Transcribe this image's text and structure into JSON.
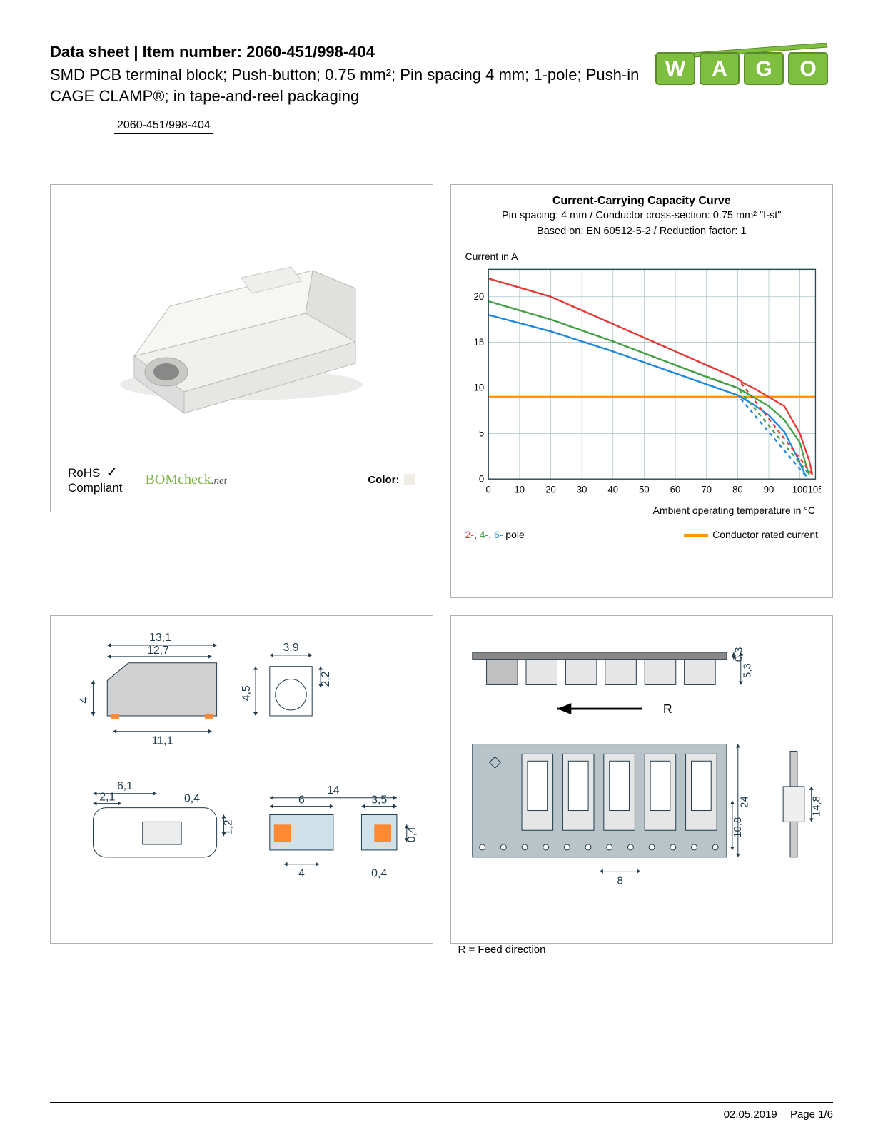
{
  "header": {
    "title_line": "Data sheet  |  Item number: 2060-451/998-404",
    "subtitle": "SMD PCB terminal block; Push-button; 0.75 mm²; Pin spacing 4 mm; 1-pole; Push-in CAGE CLAMP®; in tape-and-reel packaging",
    "item_chip": "2060-451/998-404",
    "logo_text": "WAGO",
    "logo_color_fill": "#7fbf3f",
    "logo_color_stroke": "#5a8a2c"
  },
  "panel_a": {
    "product_body_color": "#f0f0ed",
    "product_shadow_color": "#d8d8d4",
    "rohs_l1": "RoHS",
    "rohs_l2": "Compliant",
    "bomcheck_text": "BOMcheck",
    "bomcheck_suffix": ".net",
    "color_label": "Color:",
    "swatch_color": "#f3efe1"
  },
  "chart": {
    "title": "Current-Carrying Capacity Curve",
    "sub1": "Pin spacing: 4 mm / Conductor cross-section: 0.75 mm² \"f-st\"",
    "sub2": "Based on: EN 60512-5-2 / Reduction factor: 1",
    "ylabel": "Current in A",
    "xlabel": "Ambient operating temperature in °C",
    "x_ticks": [
      0,
      10,
      20,
      30,
      40,
      50,
      60,
      70,
      80,
      90,
      100,
      105
    ],
    "y_ticks": [
      0,
      5,
      10,
      15,
      20
    ],
    "xlim": [
      0,
      105
    ],
    "ylim": [
      0,
      23
    ],
    "grid_color": "#a8c0c8",
    "axis_color": "#2a4a55",
    "bg_color": "#ffffff",
    "rated_current_y": 9,
    "rated_current_color": "#ff9800",
    "series": {
      "pole2": {
        "color": "#e53935",
        "solid": [
          [
            0,
            22
          ],
          [
            10,
            21
          ],
          [
            20,
            20
          ],
          [
            30,
            18.5
          ],
          [
            40,
            17
          ],
          [
            50,
            15.5
          ],
          [
            60,
            14
          ],
          [
            70,
            12.5
          ],
          [
            80,
            11
          ],
          [
            82,
            10.5
          ],
          [
            85,
            10
          ],
          [
            90,
            9
          ],
          [
            95,
            8
          ],
          [
            100,
            5
          ],
          [
            103,
            2
          ],
          [
            104,
            0.5
          ]
        ],
        "dash": [
          [
            0,
            22
          ],
          [
            20,
            20
          ],
          [
            40,
            17
          ],
          [
            60,
            14
          ],
          [
            80,
            11
          ],
          [
            104,
            0.5
          ]
        ]
      },
      "pole4": {
        "color": "#43a047",
        "solid": [
          [
            0,
            19.5
          ],
          [
            10,
            18.5
          ],
          [
            20,
            17.5
          ],
          [
            30,
            16.3
          ],
          [
            40,
            15.1
          ],
          [
            50,
            13.8
          ],
          [
            60,
            12.5
          ],
          [
            70,
            11.2
          ],
          [
            80,
            10
          ],
          [
            85,
            9
          ],
          [
            90,
            8
          ],
          [
            95,
            6.5
          ],
          [
            100,
            4
          ],
          [
            102,
            1.5
          ],
          [
            103,
            0.5
          ]
        ],
        "dash": [
          [
            0,
            19.5
          ],
          [
            20,
            17.5
          ],
          [
            40,
            15.1
          ],
          [
            60,
            12.5
          ],
          [
            80,
            10
          ],
          [
            103,
            0.5
          ]
        ]
      },
      "pole6": {
        "color": "#1e88e5",
        "solid": [
          [
            0,
            18
          ],
          [
            10,
            17.1
          ],
          [
            20,
            16.2
          ],
          [
            30,
            15.1
          ],
          [
            40,
            14
          ],
          [
            50,
            12.8
          ],
          [
            60,
            11.6
          ],
          [
            70,
            10.4
          ],
          [
            80,
            9.2
          ],
          [
            85,
            8.2
          ],
          [
            90,
            7
          ],
          [
            95,
            5.2
          ],
          [
            99,
            2.5
          ],
          [
            101,
            1
          ],
          [
            102,
            0.3
          ]
        ],
        "dash": [
          [
            0,
            18
          ],
          [
            20,
            16.2
          ],
          [
            40,
            14
          ],
          [
            60,
            11.6
          ],
          [
            80,
            9.2
          ],
          [
            102,
            0.3
          ]
        ]
      }
    },
    "legend_left_parts": [
      {
        "text": "2-",
        "color": "#e53935"
      },
      {
        "text": ", ",
        "color": "#000"
      },
      {
        "text": "4-",
        "color": "#43a047"
      },
      {
        "text": ", ",
        "color": "#000"
      },
      {
        "text": "6-",
        "color": "#1e88e5"
      },
      {
        "text": " pole",
        "color": "#000"
      }
    ],
    "legend_right": "Conductor rated current",
    "tick_fontsize": 13
  },
  "dim_c": {
    "values": [
      "13,1",
      "12,7",
      "4",
      "11,1",
      "6,1",
      "2,1",
      "0,4",
      "1,2",
      "3,9",
      "4,5",
      "2,2",
      "14",
      "6",
      "4",
      "3,5",
      "0,4",
      "0,4"
    ],
    "line_color": "#1f3b4d",
    "fill_gray": "#d0d0d0",
    "fill_orange": "#ff8a33"
  },
  "dim_d": {
    "caption": "R = Feed direction",
    "feed_label": "R",
    "values": [
      "5,3",
      "0,3",
      "24",
      "10,8",
      "8",
      "14,8"
    ],
    "line_color": "#1f3b4d",
    "tape_color": "#b8c4c8",
    "pocket_color": "#e6e6e6"
  },
  "footer": {
    "date": "02.05.2019",
    "page": "Page 1/6"
  }
}
